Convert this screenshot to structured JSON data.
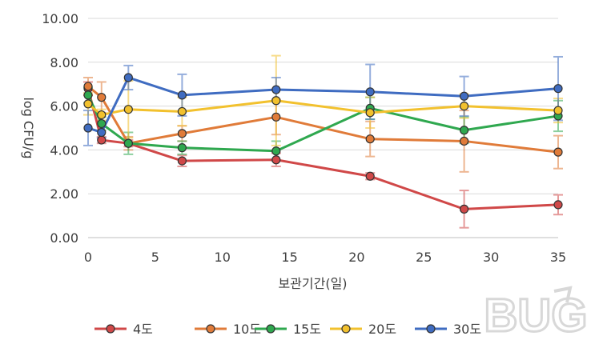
{
  "chart_data": {
    "type": "line",
    "title": "",
    "xlabel": "보관기간(일)",
    "ylabel": "log CFU/g",
    "xlim": [
      0,
      35
    ],
    "ylim": [
      0,
      10
    ],
    "x_ticks": [
      "0",
      "5",
      "10",
      "15",
      "20",
      "25",
      "30",
      "35"
    ],
    "y_ticks": [
      "0.00",
      "2.00",
      "4.00",
      "6.00",
      "8.00",
      "10.00"
    ],
    "grid": "horizontal",
    "legend_position": "bottom",
    "series": [
      {
        "name": "4도",
        "color": "#d04848",
        "x": [
          0,
          1,
          3,
          7,
          14,
          21,
          28,
          35
        ],
        "y": [
          6.8,
          4.45,
          4.3,
          3.5,
          3.55,
          2.8,
          1.3,
          1.5
        ],
        "err": [
          0.3,
          0.15,
          0.15,
          0.25,
          0.3,
          0.15,
          0.85,
          0.45
        ]
      },
      {
        "name": "10도",
        "color": "#e07b39",
        "x": [
          0,
          1,
          3,
          7,
          14,
          21,
          28,
          35
        ],
        "y": [
          6.9,
          6.4,
          4.3,
          4.75,
          5.5,
          4.5,
          4.4,
          3.9
        ],
        "err": [
          0.4,
          0.7,
          0.3,
          0.35,
          0.8,
          0.8,
          1.4,
          0.75
        ]
      },
      {
        "name": "15도",
        "color": "#2fa84f",
        "x": [
          0,
          1,
          3,
          7,
          14,
          21,
          28,
          35
        ],
        "y": [
          6.5,
          5.2,
          4.3,
          4.1,
          3.95,
          5.9,
          4.9,
          5.55
        ],
        "err": [
          0.35,
          0.3,
          0.5,
          0.3,
          0.45,
          0.5,
          0.6,
          0.7
        ]
      },
      {
        "name": "20도",
        "color": "#f2c12e",
        "x": [
          0,
          1,
          3,
          7,
          14,
          21,
          28,
          35
        ],
        "y": [
          6.1,
          5.6,
          5.85,
          5.75,
          6.25,
          5.7,
          6.0,
          5.8
        ],
        "err": [
          0.5,
          0.25,
          1.3,
          0.65,
          2.05,
          0.7,
          0.55,
          0.55
        ]
      },
      {
        "name": "30도",
        "color": "#3f6cc1",
        "x": [
          0,
          1,
          3,
          7,
          14,
          21,
          28,
          35
        ],
        "y": [
          5.0,
          4.8,
          7.3,
          6.5,
          6.75,
          6.65,
          6.45,
          6.8
        ],
        "err": [
          0.8,
          0.25,
          0.55,
          0.95,
          0.55,
          1.25,
          0.9,
          1.45
        ]
      }
    ]
  },
  "watermark": {
    "text": "BUG"
  }
}
